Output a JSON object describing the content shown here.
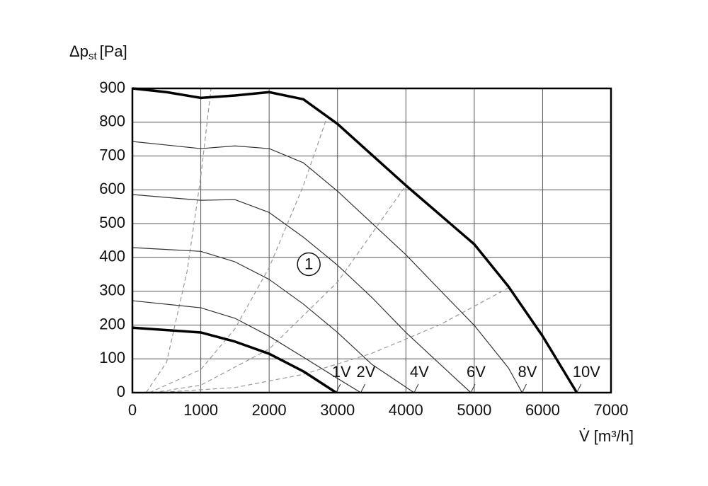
{
  "chart_data": {
    "type": "line",
    "ylabel": {
      "main": "Δp",
      "sub": "st",
      "unit": "[Pa]"
    },
    "xlabel": "V̇ [m³/h]",
    "xlim": [
      0,
      7000
    ],
    "ylim": [
      0,
      900
    ],
    "xticks": [
      0,
      1000,
      2000,
      3000,
      4000,
      5000,
      6000,
      7000
    ],
    "yticks": [
      0,
      100,
      200,
      300,
      400,
      500,
      600,
      700,
      800,
      900
    ],
    "grid": true,
    "series": [
      {
        "name": "1V",
        "color": "#000000",
        "width": 3.5,
        "x": [
          0,
          1000,
          1500,
          2000,
          2500,
          2980
        ],
        "values": [
          192,
          178,
          151,
          115,
          63,
          0
        ]
      },
      {
        "name": "2V",
        "color": "#333333",
        "width": 1.2,
        "x": [
          0,
          1000,
          1500,
          2000,
          2500,
          3000,
          3340
        ],
        "values": [
          272,
          251,
          220,
          167,
          105,
          42,
          0
        ]
      },
      {
        "name": "4V",
        "color": "#333333",
        "width": 1.2,
        "x": [
          0,
          1000,
          1500,
          2000,
          2500,
          3000,
          3500,
          4120
        ],
        "values": [
          429,
          418,
          387,
          335,
          262,
          178,
          84,
          0
        ]
      },
      {
        "name": "6V",
        "color": "#333333",
        "width": 1.2,
        "x": [
          0,
          1000,
          1500,
          2000,
          2500,
          3000,
          3500,
          4000,
          4500,
          4950
        ],
        "values": [
          586,
          569,
          571,
          533,
          460,
          377,
          282,
          178,
          84,
          0
        ]
      },
      {
        "name": "8V",
        "color": "#333333",
        "width": 1.2,
        "x": [
          0,
          1000,
          1500,
          2000,
          2500,
          3000,
          3500,
          4000,
          4500,
          5000,
          5500,
          5700
        ],
        "values": [
          743,
          722,
          730,
          722,
          680,
          596,
          502,
          408,
          303,
          199,
          73,
          0
        ]
      },
      {
        "name": "10V",
        "color": "#000000",
        "width": 3.5,
        "x": [
          0,
          500,
          1000,
          1500,
          2000,
          2500,
          3000,
          4000,
          5000,
          5500,
          6000,
          6500
        ],
        "values": [
          900,
          889,
          872,
          879,
          889,
          868,
          795,
          613,
          439,
          314,
          167,
          0
        ]
      }
    ],
    "system_curves": {
      "color": "#999999",
      "dashed": true,
      "curves": [
        {
          "x": [
            200,
            500,
            800,
            1000,
            1150
          ],
          "values": [
            0,
            90,
            359,
            638,
            900
          ]
        },
        {
          "x": [
            250,
            1000,
            1500,
            2000,
            2500,
            2830
          ],
          "values": [
            0,
            68,
            189,
            370,
            612,
            805
          ]
        },
        {
          "x": [
            300,
            1000,
            2000,
            3000,
            4000
          ],
          "values": [
            0,
            22,
            129,
            327,
            613
          ]
        },
        {
          "x": [
            350,
            1500,
            2500,
            3500,
            4500,
            5500
          ],
          "values": [
            0,
            15,
            54,
            116,
            201,
            310
          ]
        }
      ]
    },
    "annotation": {
      "text": "1",
      "x": 2580,
      "y": 380
    }
  }
}
